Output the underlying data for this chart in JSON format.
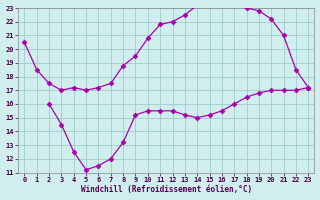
{
  "xlabel": "Windchill (Refroidissement éolien,°C)",
  "background_color": "#d0eeee",
  "grid_color": "#a0cccc",
  "line_color": "#aa00aa",
  "xlim": [
    -0.5,
    23.5
  ],
  "ylim": [
    11,
    23
  ],
  "yticks": [
    11,
    12,
    13,
    14,
    15,
    16,
    17,
    18,
    19,
    20,
    21,
    22,
    23
  ],
  "xticks": [
    0,
    1,
    2,
    3,
    4,
    5,
    6,
    7,
    8,
    9,
    10,
    11,
    12,
    13,
    14,
    15,
    16,
    17,
    18,
    19,
    20,
    21,
    22,
    23
  ],
  "curve1_x": [
    0,
    1,
    2,
    3,
    4,
    5,
    6,
    7,
    8,
    9,
    10,
    11,
    12,
    13,
    14,
    15,
    16,
    17,
    18,
    19,
    20,
    21,
    22,
    23
  ],
  "curve1_y": [
    20.5,
    18.5,
    17.5,
    17.0,
    17.2,
    17.0,
    17.2,
    17.5,
    18.8,
    19.5,
    20.8,
    21.8,
    22.0,
    22.5,
    23.2,
    23.5,
    23.5,
    23.2,
    23.0,
    22.8,
    22.2,
    21.0,
    18.5,
    17.2
  ],
  "curve2_x": [
    2,
    3,
    4,
    5,
    6,
    7,
    8,
    9,
    10,
    11,
    12,
    13,
    14,
    15,
    16,
    17,
    18,
    19,
    20,
    21,
    22,
    23
  ],
  "curve2_y": [
    16.0,
    14.5,
    12.5,
    11.2,
    11.5,
    12.0,
    13.2,
    15.2,
    15.5,
    15.5,
    15.5,
    15.2,
    15.0,
    15.2,
    15.5,
    16.0,
    16.5,
    16.8,
    17.0,
    17.0,
    17.0,
    17.2
  ]
}
